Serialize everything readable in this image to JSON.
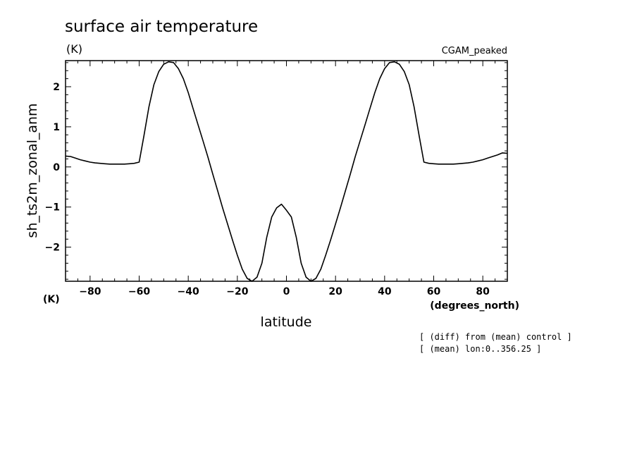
{
  "chart_data": {
    "type": "line",
    "title": "surface air temperature",
    "y_unit": "(K)",
    "y_unit_bottom": "(K)",
    "experiment": "CGAM_peaked",
    "xlabel": "latitude",
    "x_unit": "(degrees_north)",
    "ylabel": "sh_ts2m_zonal_anm",
    "xlim": [
      -90,
      90
    ],
    "ylim": [
      -2.85,
      2.65
    ],
    "x_ticks": [
      -80,
      -60,
      -40,
      -20,
      0,
      20,
      40,
      60,
      80
    ],
    "x_tick_labels": [
      "−80",
      "−60",
      "−40",
      "−20",
      "0",
      "20",
      "40",
      "60",
      "80"
    ],
    "y_ticks": [
      -2,
      -1,
      0,
      1,
      2
    ],
    "y_tick_labels": [
      "−2",
      "−1",
      "0",
      "1",
      "2"
    ],
    "grid": false,
    "line_color": "#000000",
    "series": [
      {
        "x": [
          -90,
          -88,
          -86,
          -84,
          -82,
          -80,
          -78,
          -76,
          -74,
          -72,
          -70,
          -68,
          -66,
          -64,
          -62,
          -60,
          -58,
          -56,
          -54,
          -52,
          -50,
          -48,
          -46,
          -44,
          -42,
          -40,
          -38,
          -36,
          -34,
          -32,
          -30,
          -28,
          -26,
          -24,
          -22,
          -20,
          -18,
          -16,
          -14,
          -12,
          -10,
          -8,
          -6,
          -4,
          -2,
          0,
          2,
          4,
          6,
          8,
          10,
          12,
          14,
          16,
          18,
          20,
          22,
          24,
          26,
          28,
          30,
          32,
          34,
          36,
          38,
          40,
          42,
          44,
          46,
          48,
          50,
          52,
          54,
          56,
          58,
          60,
          62,
          64,
          66,
          68,
          70,
          72,
          74,
          76,
          78,
          80,
          82,
          84,
          86,
          88,
          90
        ],
        "y": [
          0.27,
          0.26,
          0.22,
          0.18,
          0.15,
          0.12,
          0.1,
          0.09,
          0.08,
          0.07,
          0.07,
          0.07,
          0.07,
          0.08,
          0.09,
          0.12,
          0.8,
          1.5,
          2.05,
          2.38,
          2.56,
          2.62,
          2.6,
          2.45,
          2.2,
          1.85,
          1.45,
          1.05,
          0.65,
          0.25,
          -0.18,
          -0.6,
          -1.02,
          -1.42,
          -1.82,
          -2.2,
          -2.55,
          -2.78,
          -2.86,
          -2.75,
          -2.4,
          -1.75,
          -1.25,
          -1.02,
          -0.93,
          -1.08,
          -1.25,
          -1.75,
          -2.4,
          -2.75,
          -2.86,
          -2.78,
          -2.55,
          -2.2,
          -1.82,
          -1.42,
          -1.02,
          -0.6,
          -0.18,
          0.25,
          0.65,
          1.05,
          1.45,
          1.85,
          2.2,
          2.45,
          2.6,
          2.62,
          2.56,
          2.38,
          2.05,
          1.5,
          0.8,
          0.12,
          0.09,
          0.08,
          0.07,
          0.07,
          0.07,
          0.07,
          0.08,
          0.09,
          0.1,
          0.12,
          0.15,
          0.18,
          0.22,
          0.26,
          0.3,
          0.35,
          0.34
        ]
      }
    ]
  },
  "notes": [
    "[ (diff) from (mean) control ]",
    "[ (mean) lon:0..356.25 ]"
  ]
}
